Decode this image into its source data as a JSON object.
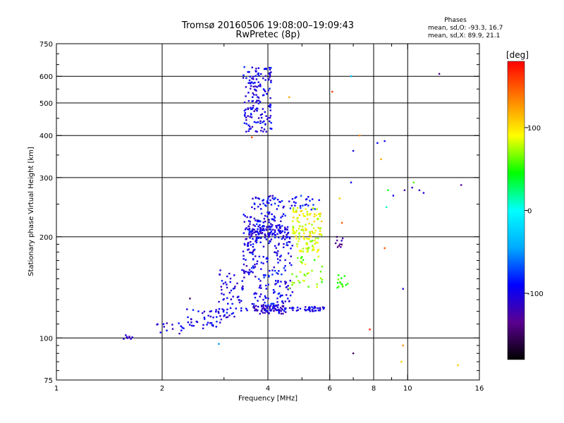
{
  "chart_data": {
    "type": "scatter",
    "title": "Tromsø 20160506 19:08:00–19:09:43",
    "subtitle": "RwPretec (8p)",
    "xlabel": "Frequency [MHz]",
    "ylabel": "Stationary phase Virtual Height [km]",
    "x_scale": "log",
    "y_scale": "log",
    "xlim": [
      1,
      16
    ],
    "ylim": [
      75,
      750
    ],
    "x_ticks": [
      1,
      2,
      4,
      6,
      8,
      10,
      16
    ],
    "x_tick_labels": [
      "1",
      "2",
      "4",
      "6",
      "8",
      "10",
      "16"
    ],
    "x_minor_ticks": [
      3,
      5,
      7,
      9
    ],
    "y_ticks": [
      75,
      100,
      200,
      300,
      400,
      500,
      600,
      750
    ],
    "y_tick_labels": [
      "75",
      "100",
      "200",
      "300",
      "400",
      "500",
      "600",
      "750"
    ],
    "grid": true,
    "phase_header": "Phases",
    "phase_stats": [
      "mean, sd,O: -93.3, 16.7",
      "mean, sd,X:  89.9, 21.1"
    ],
    "colorbar": {
      "label": "[deg]",
      "range": [
        -180,
        180
      ],
      "ticks": [
        100,
        0,
        -100
      ],
      "tick_labels": [
        "100",
        "0",
        "-100"
      ],
      "colors": [
        "#000000",
        "#5a0090",
        "#0000ff",
        "#00aaff",
        "#00ffff",
        "#00ff00",
        "#ffff00",
        "#ff8000",
        "#ff0000"
      ]
    },
    "clusters": [
      {
        "x_range": [
          1.55,
          1.65
        ],
        "y_range": [
          99,
          102
        ],
        "phase": -110,
        "count": 8
      },
      {
        "x_range": [
          1.9,
          2.3
        ],
        "y_range": [
          103,
          112
        ],
        "phase": -105,
        "count": 14
      },
      {
        "x_range": [
          2.3,
          3.0
        ],
        "y_range": [
          106,
          122
        ],
        "phase": -100,
        "count": 45
      },
      {
        "x_range": [
          2.9,
          3.5
        ],
        "y_range": [
          115,
          160
        ],
        "phase": -100,
        "count": 60
      },
      {
        "x_range": [
          3.4,
          3.7
        ],
        "y_range": [
          150,
          235
        ],
        "phase": -105,
        "count": 70
      },
      {
        "x_range": [
          3.6,
          4.5
        ],
        "y_range": [
          118,
          125
        ],
        "phase": -110,
        "count": 80
      },
      {
        "x_range": [
          3.6,
          4.7
        ],
        "y_range": [
          125,
          200
        ],
        "phase": -95,
        "count": 150
      },
      {
        "x_range": [
          3.5,
          4.6
        ],
        "y_range": [
          198,
          215
        ],
        "phase": -100,
        "count": 110
      },
      {
        "x_range": [
          3.6,
          4.5
        ],
        "y_range": [
          215,
          265
        ],
        "phase": -95,
        "count": 80
      },
      {
        "x_range": [
          3.4,
          4.1
        ],
        "y_range": [
          410,
          640
        ],
        "phase": -100,
        "count": 160
      },
      {
        "x_range": [
          4.7,
          5.7
        ],
        "y_range": [
          200,
          245
        ],
        "phase": 90,
        "count": 90
      },
      {
        "x_range": [
          4.8,
          5.6
        ],
        "y_range": [
          180,
          198
        ],
        "phase": 80,
        "count": 45
      },
      {
        "x_range": [
          4.6,
          5.8
        ],
        "y_range": [
          140,
          175
        ],
        "phase": 70,
        "count": 35
      },
      {
        "x_range": [
          4.6,
          5.8
        ],
        "y_range": [
          120,
          124
        ],
        "phase": -100,
        "count": 40
      },
      {
        "x_range": [
          4.6,
          5.8
        ],
        "y_range": [
          240,
          265
        ],
        "phase": -90,
        "count": 25
      },
      {
        "x_range": [
          6.3,
          6.8
        ],
        "y_range": [
          140,
          155
        ],
        "phase": 60,
        "count": 14
      },
      {
        "x_range": [
          6.2,
          6.6
        ],
        "y_range": [
          185,
          200
        ],
        "phase": -130,
        "count": 10
      }
    ],
    "isolated_points": [
      {
        "x": 6.4,
        "y": 260,
        "phase": 110
      },
      {
        "x": 6.9,
        "y": 290,
        "phase": -100
      },
      {
        "x": 7.0,
        "y": 360,
        "phase": -100
      },
      {
        "x": 7.3,
        "y": 400,
        "phase": 130
      },
      {
        "x": 6.9,
        "y": 600,
        "phase": -30
      },
      {
        "x": 6.1,
        "y": 540,
        "phase": 160
      },
      {
        "x": 4.6,
        "y": 520,
        "phase": 120
      },
      {
        "x": 6.5,
        "y": 220,
        "phase": 150
      },
      {
        "x": 7.0,
        "y": 90,
        "phase": -150
      },
      {
        "x": 7.8,
        "y": 106,
        "phase": 170
      },
      {
        "x": 8.2,
        "y": 380,
        "phase": -90
      },
      {
        "x": 8.6,
        "y": 385,
        "phase": -95
      },
      {
        "x": 8.4,
        "y": 340,
        "phase": 120
      },
      {
        "x": 8.8,
        "y": 275,
        "phase": 40
      },
      {
        "x": 9.1,
        "y": 265,
        "phase": -100
      },
      {
        "x": 8.7,
        "y": 245,
        "phase": 10
      },
      {
        "x": 9.7,
        "y": 140,
        "phase": -110
      },
      {
        "x": 9.8,
        "y": 275,
        "phase": -120
      },
      {
        "x": 10.3,
        "y": 280,
        "phase": -110
      },
      {
        "x": 10.8,
        "y": 275,
        "phase": -110
      },
      {
        "x": 11.1,
        "y": 270,
        "phase": -105
      },
      {
        "x": 10.4,
        "y": 290,
        "phase": 60
      },
      {
        "x": 12.3,
        "y": 610,
        "phase": -140
      },
      {
        "x": 14.2,
        "y": 285,
        "phase": -130
      },
      {
        "x": 8.6,
        "y": 185,
        "phase": 150
      },
      {
        "x": 9.7,
        "y": 95,
        "phase": 130
      },
      {
        "x": 9.6,
        "y": 85,
        "phase": 110
      },
      {
        "x": 13.9,
        "y": 83,
        "phase": 110
      },
      {
        "x": 3.6,
        "y": 395,
        "phase": 150
      },
      {
        "x": 2.9,
        "y": 96,
        "phase": -50
      },
      {
        "x": 2.4,
        "y": 131,
        "phase": -150
      }
    ]
  }
}
